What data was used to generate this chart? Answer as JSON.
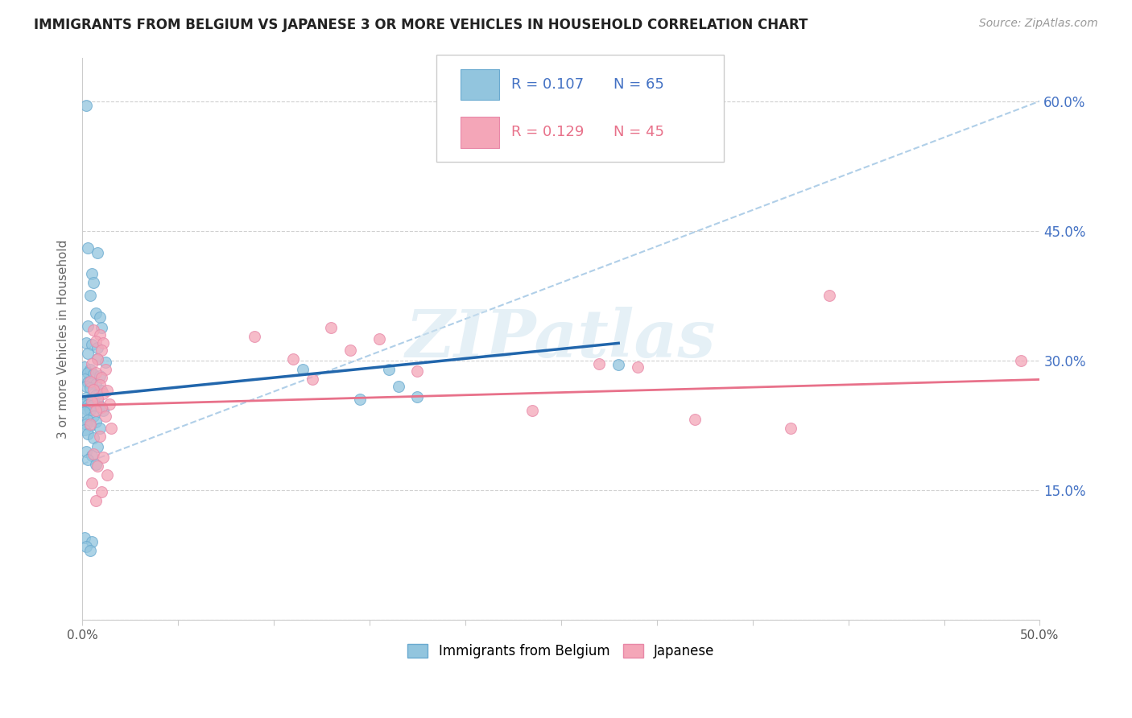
{
  "title": "IMMIGRANTS FROM BELGIUM VS JAPANESE 3 OR MORE VEHICLES IN HOUSEHOLD CORRELATION CHART",
  "source": "Source: ZipAtlas.com",
  "ylabel": "3 or more Vehicles in Household",
  "xlim": [
    0.0,
    0.5
  ],
  "ylim": [
    0.0,
    0.65
  ],
  "xticks": [
    0.0,
    0.05,
    0.1,
    0.15,
    0.2,
    0.25,
    0.3,
    0.35,
    0.4,
    0.45,
    0.5
  ],
  "yticks": [
    0.0,
    0.15,
    0.3,
    0.45,
    0.6
  ],
  "ytick_labels_right": [
    "",
    "15.0%",
    "30.0%",
    "45.0%",
    "60.0%"
  ],
  "legend_R1": "0.107",
  "legend_N1": "65",
  "legend_R2": "0.129",
  "legend_N2": "45",
  "color_blue": "#92c5de",
  "color_pink": "#f4a6b8",
  "color_line_blue": "#2166ac",
  "color_line_pink": "#e8718a",
  "color_dashed": "#b0cfe8",
  "watermark": "ZIPatlas",
  "blue_points": [
    [
      0.002,
      0.595
    ],
    [
      0.003,
      0.43
    ],
    [
      0.005,
      0.4
    ],
    [
      0.006,
      0.39
    ],
    [
      0.008,
      0.425
    ],
    [
      0.004,
      0.375
    ],
    [
      0.007,
      0.355
    ],
    [
      0.009,
      0.35
    ],
    [
      0.003,
      0.34
    ],
    [
      0.01,
      0.338
    ],
    [
      0.002,
      0.32
    ],
    [
      0.005,
      0.318
    ],
    [
      0.008,
      0.315
    ],
    [
      0.003,
      0.308
    ],
    [
      0.008,
      0.302
    ],
    [
      0.012,
      0.298
    ],
    [
      0.001,
      0.292
    ],
    [
      0.004,
      0.29
    ],
    [
      0.003,
      0.286
    ],
    [
      0.006,
      0.284
    ],
    [
      0.009,
      0.282
    ],
    [
      0.001,
      0.278
    ],
    [
      0.003,
      0.275
    ],
    [
      0.005,
      0.274
    ],
    [
      0.007,
      0.273
    ],
    [
      0.002,
      0.27
    ],
    [
      0.004,
      0.268
    ],
    [
      0.01,
      0.265
    ],
    [
      0.007,
      0.26
    ],
    [
      0.002,
      0.257
    ],
    [
      0.004,
      0.255
    ],
    [
      0.006,
      0.253
    ],
    [
      0.008,
      0.252
    ],
    [
      0.001,
      0.25
    ],
    [
      0.003,
      0.249
    ],
    [
      0.005,
      0.248
    ],
    [
      0.009,
      0.247
    ],
    [
      0.002,
      0.244
    ],
    [
      0.004,
      0.243
    ],
    [
      0.011,
      0.242
    ],
    [
      0.001,
      0.24
    ],
    [
      0.006,
      0.236
    ],
    [
      0.003,
      0.231
    ],
    [
      0.007,
      0.229
    ],
    [
      0.002,
      0.226
    ],
    [
      0.004,
      0.224
    ],
    [
      0.009,
      0.222
    ],
    [
      0.001,
      0.22
    ],
    [
      0.003,
      0.215
    ],
    [
      0.006,
      0.21
    ],
    [
      0.008,
      0.2
    ],
    [
      0.002,
      0.195
    ],
    [
      0.005,
      0.19
    ],
    [
      0.003,
      0.185
    ],
    [
      0.007,
      0.18
    ],
    [
      0.001,
      0.095
    ],
    [
      0.005,
      0.09
    ],
    [
      0.002,
      0.085
    ],
    [
      0.004,
      0.08
    ],
    [
      0.115,
      0.29
    ],
    [
      0.16,
      0.29
    ],
    [
      0.28,
      0.295
    ],
    [
      0.165,
      0.27
    ],
    [
      0.145,
      0.255
    ],
    [
      0.175,
      0.258
    ]
  ],
  "pink_points": [
    [
      0.006,
      0.335
    ],
    [
      0.009,
      0.33
    ],
    [
      0.007,
      0.322
    ],
    [
      0.011,
      0.32
    ],
    [
      0.01,
      0.312
    ],
    [
      0.008,
      0.302
    ],
    [
      0.005,
      0.296
    ],
    [
      0.012,
      0.29
    ],
    [
      0.007,
      0.286
    ],
    [
      0.01,
      0.28
    ],
    [
      0.004,
      0.276
    ],
    [
      0.009,
      0.272
    ],
    [
      0.006,
      0.266
    ],
    [
      0.011,
      0.262
    ],
    [
      0.013,
      0.265
    ],
    [
      0.008,
      0.256
    ],
    [
      0.005,
      0.252
    ],
    [
      0.014,
      0.25
    ],
    [
      0.01,
      0.246
    ],
    [
      0.007,
      0.242
    ],
    [
      0.012,
      0.236
    ],
    [
      0.004,
      0.226
    ],
    [
      0.015,
      0.222
    ],
    [
      0.009,
      0.212
    ],
    [
      0.006,
      0.192
    ],
    [
      0.011,
      0.188
    ],
    [
      0.008,
      0.178
    ],
    [
      0.013,
      0.168
    ],
    [
      0.005,
      0.158
    ],
    [
      0.01,
      0.148
    ],
    [
      0.007,
      0.138
    ],
    [
      0.13,
      0.338
    ],
    [
      0.09,
      0.328
    ],
    [
      0.155,
      0.325
    ],
    [
      0.14,
      0.312
    ],
    [
      0.11,
      0.302
    ],
    [
      0.175,
      0.288
    ],
    [
      0.12,
      0.278
    ],
    [
      0.27,
      0.296
    ],
    [
      0.29,
      0.292
    ],
    [
      0.235,
      0.242
    ],
    [
      0.32,
      0.232
    ],
    [
      0.37,
      0.222
    ],
    [
      0.39,
      0.375
    ],
    [
      0.49,
      0.3
    ]
  ],
  "blue_line": {
    "x0": 0.0,
    "x1": 0.28,
    "y0": 0.258,
    "y1": 0.32
  },
  "pink_line": {
    "x0": 0.0,
    "x1": 0.5,
    "y0": 0.248,
    "y1": 0.278
  },
  "dashed_line": {
    "x0": 0.0,
    "x1": 0.5,
    "y0": 0.18,
    "y1": 0.6
  }
}
